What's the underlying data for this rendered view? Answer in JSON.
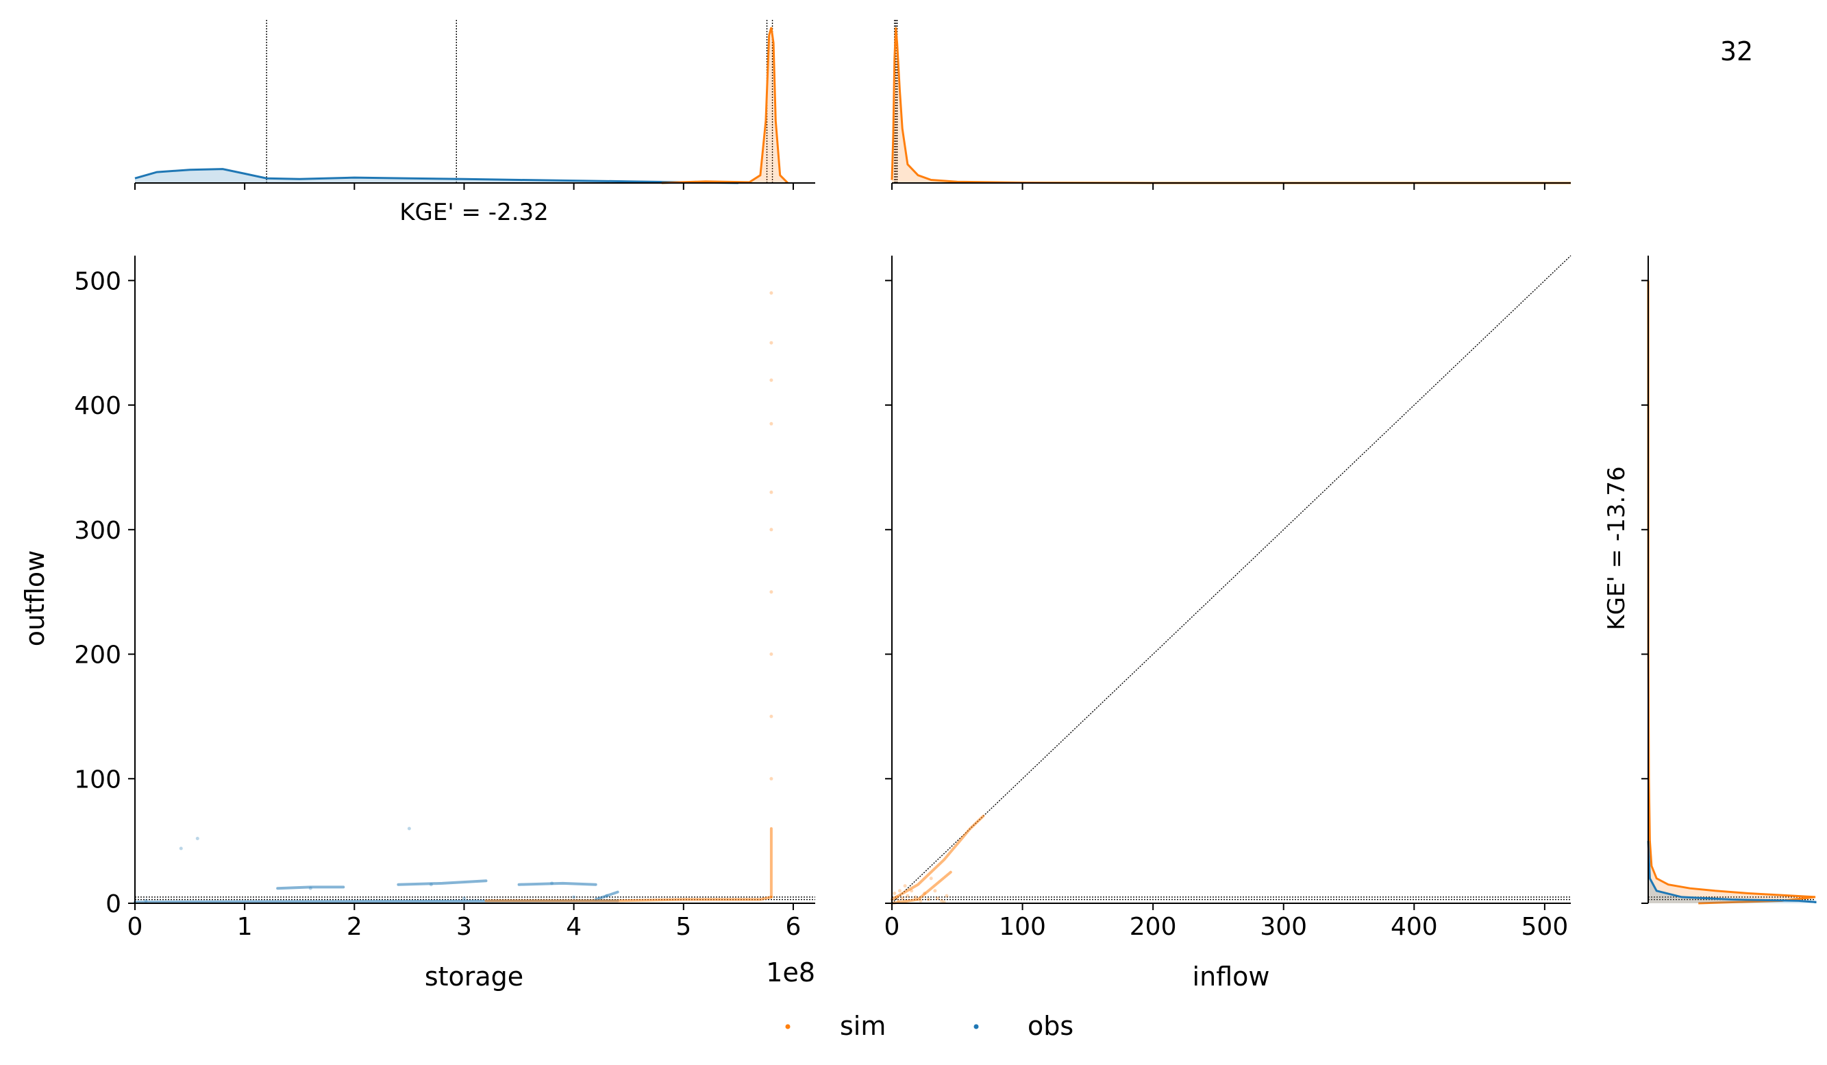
{
  "figure": {
    "page_number": "32",
    "legend": {
      "placement": "bottom-center",
      "entries": [
        "sim",
        "obs"
      ]
    }
  },
  "colors": {
    "sim": "#ff7f0e",
    "obs": "#1f77b4",
    "reference": "#000000"
  },
  "chart_data": [
    {
      "id": "storage-marginal",
      "type": "area",
      "annotation": "KGE' = -2.32",
      "xlim": [
        0,
        620000000
      ],
      "show_ticklabels": false,
      "ref_lines_x": [
        120000000,
        293000000,
        576000000,
        581000000
      ],
      "series": [
        {
          "name": "obs",
          "x": [
            0,
            20000000,
            50000000,
            80000000,
            100000000,
            120000000,
            150000000,
            200000000,
            250000000,
            300000000,
            350000000,
            400000000,
            450000000,
            500000000,
            550000000
          ],
          "y": [
            0.03,
            0.07,
            0.085,
            0.09,
            0.06,
            0.03,
            0.025,
            0.035,
            0.03,
            0.025,
            0.02,
            0.015,
            0.01,
            0.005,
            0.0
          ]
        },
        {
          "name": "sim",
          "x": [
            480000000,
            520000000,
            560000000,
            570000000,
            575000000,
            578000000,
            580000000,
            582000000,
            584000000,
            588000000,
            595000000
          ],
          "y": [
            0.0,
            0.01,
            0.005,
            0.05,
            0.4,
            0.95,
            1.0,
            0.9,
            0.4,
            0.05,
            0.0
          ]
        }
      ]
    },
    {
      "id": "inflow-marginal",
      "type": "area",
      "xlim": [
        0,
        520
      ],
      "show_ticklabels": false,
      "ref_lines_x": [
        2,
        3,
        4
      ],
      "series": [
        {
          "name": "sim",
          "x": [
            0,
            1,
            2,
            3,
            4,
            6,
            8,
            12,
            20,
            30,
            50,
            100,
            200,
            520
          ],
          "y": [
            0.02,
            0.3,
            0.8,
            1.0,
            0.9,
            0.6,
            0.35,
            0.12,
            0.05,
            0.02,
            0.008,
            0.002,
            0.0,
            0.0
          ]
        }
      ]
    },
    {
      "id": "storage-outflow",
      "type": "scatter",
      "xlabel": "storage",
      "ylabel": "outflow",
      "offset_label": "1e8",
      "xlim": [
        0,
        620000000
      ],
      "ylim": [
        0,
        520
      ],
      "xticks": [
        0,
        100000000,
        200000000,
        300000000,
        400000000,
        500000000,
        600000000
      ],
      "xticklabels": [
        "0",
        "1",
        "2",
        "3",
        "4",
        "5",
        "6"
      ],
      "yticks": [
        0,
        100,
        200,
        300,
        400,
        500
      ],
      "yticklabels": [
        "0",
        "100",
        "200",
        "300",
        "400",
        "500"
      ],
      "ref_lines_y": [
        3,
        5
      ],
      "series": [
        {
          "name": "obs",
          "segments": [
            [
              [
                130000000,
                12
              ],
              [
                160000000,
                13
              ],
              [
                190000000,
                13
              ]
            ],
            [
              [
                240000000,
                15
              ],
              [
                280000000,
                16
              ],
              [
                320000000,
                18
              ]
            ],
            [
              [
                350000000,
                15
              ],
              [
                390000000,
                16
              ],
              [
                420000000,
                15
              ]
            ],
            [
              [
                0,
                1
              ],
              [
                200000000,
                1.5
              ],
              [
                440000000,
                2
              ]
            ],
            [
              [
                420000000,
                3
              ],
              [
                440000000,
                9
              ]
            ]
          ],
          "points": [
            [
              42000000,
              44
            ],
            [
              57000000,
              52
            ],
            [
              250000000,
              60
            ],
            [
              160000000,
              12
            ],
            [
              270000000,
              15
            ],
            [
              380000000,
              16
            ],
            [
              430000000,
              6
            ],
            [
              10000000,
              2
            ],
            [
              300000000,
              4
            ],
            [
              400000000,
              5
            ]
          ]
        },
        {
          "name": "sim",
          "segments": [
            [
              [
                320000000,
                2
              ],
              [
                440000000,
                2
              ],
              [
                500000000,
                3
              ],
              [
                570000000,
                3
              ],
              [
                580000000,
                5
              ]
            ],
            [
              [
                580000000,
                5
              ],
              [
                580000000,
                60
              ]
            ]
          ],
          "points": [
            [
              580000000,
              100
            ],
            [
              580000000,
              150
            ],
            [
              580000000,
              200
            ],
            [
              580000000,
              250
            ],
            [
              580000000,
              300
            ],
            [
              580000000,
              330
            ],
            [
              580000000,
              385
            ],
            [
              580000000,
              420
            ],
            [
              580000000,
              450
            ],
            [
              580000000,
              490
            ]
          ]
        }
      ]
    },
    {
      "id": "inflow-outflow",
      "type": "scatter",
      "xlabel": "inflow",
      "xlim": [
        0,
        520
      ],
      "ylim": [
        0,
        520
      ],
      "xticks": [
        0,
        100,
        200,
        300,
        400,
        500
      ],
      "xticklabels": [
        "0",
        "100",
        "200",
        "300",
        "400",
        "500"
      ],
      "yticks": [
        0,
        100,
        200,
        300,
        400,
        500
      ],
      "show_yticklabels": false,
      "ref_lines_y": [
        3,
        5
      ],
      "identity_line": true,
      "series": [
        {
          "name": "sim",
          "segments": [
            [
              [
                0,
                3
              ],
              [
                20,
                15
              ],
              [
                40,
                35
              ],
              [
                60,
                60
              ],
              [
                70,
                70
              ]
            ],
            [
              [
                0,
                0
              ],
              [
                20,
                3
              ],
              [
                45,
                25
              ]
            ]
          ],
          "points": [
            [
              5,
              2
            ],
            [
              8,
              4
            ],
            [
              12,
              6
            ],
            [
              15,
              10
            ],
            [
              18,
              5
            ],
            [
              22,
              2
            ],
            [
              25,
              8
            ],
            [
              28,
              3
            ],
            [
              30,
              20
            ],
            [
              33,
              10
            ],
            [
              35,
              4
            ],
            [
              38,
              2
            ],
            [
              40,
              1
            ],
            [
              42,
              6
            ],
            [
              2,
              8
            ],
            [
              4,
              5
            ],
            [
              6,
              10
            ],
            [
              10,
              14
            ]
          ]
        }
      ]
    },
    {
      "id": "outflow-marginal",
      "type": "area",
      "annotation": "KGE' = -13.76",
      "ylim": [
        0,
        520
      ],
      "yticks": [
        0,
        100,
        200,
        300,
        400,
        500
      ],
      "show_ticklabels": false,
      "ref_lines_y": [
        3,
        5
      ],
      "series": [
        {
          "name": "sim",
          "y": [
            0,
            2,
            5,
            8,
            10,
            12,
            15,
            20,
            30,
            50,
            100,
            200,
            500
          ],
          "x": [
            0.3,
            0.8,
            1.0,
            0.6,
            0.4,
            0.25,
            0.12,
            0.05,
            0.02,
            0.01,
            0.004,
            0.001,
            0.0
          ]
        },
        {
          "name": "obs",
          "y": [
            0,
            1,
            2,
            3,
            5,
            10,
            20,
            50
          ],
          "x": [
            1.0,
            1.0,
            0.9,
            0.5,
            0.2,
            0.05,
            0.01,
            0.0
          ]
        }
      ]
    }
  ]
}
